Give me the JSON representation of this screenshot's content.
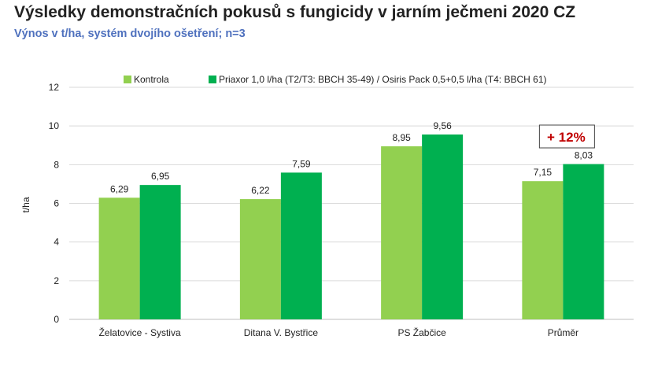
{
  "title": "Výsledky demonstračních pokusů s fungicidy v jarním ječmeni 2020 CZ",
  "subtitle": "Výnos v t/ha, systém dvojího ošetření; n=3",
  "colors": {
    "kontrola": "#92d050",
    "priaxor": "#00b050",
    "annotation": "#c00000"
  },
  "chart_data": {
    "type": "bar",
    "categories": [
      "Želatovice - Systiva",
      "Ditana V. Bystřice",
      "PS Žabčice",
      "Průměr"
    ],
    "series": [
      {
        "name": "Kontrola",
        "values": [
          6.29,
          6.22,
          8.95,
          7.15
        ],
        "labels": [
          "6,29",
          "6,22",
          "8,95",
          "7,15"
        ]
      },
      {
        "name": "Priaxor 1,0 l/ha (T2/T3: BBCH 35-49) / Osiris Pack 0,5+0,5 l/ha (T4: BBCH 61)",
        "values": [
          6.95,
          7.59,
          9.56,
          8.03
        ],
        "labels": [
          "6,95",
          "7,59",
          "9,56",
          "8,03"
        ]
      }
    ],
    "ylabel": "t/ha",
    "ylim": [
      0,
      12
    ],
    "yticks": [
      "0",
      "2",
      "4",
      "6",
      "8",
      "10",
      "12"
    ],
    "grid": true,
    "legend": "top",
    "annotation": "+ 12%"
  }
}
